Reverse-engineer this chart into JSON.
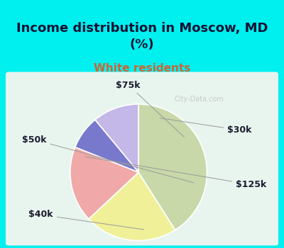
{
  "title": "Income distribution in Moscow, MD\n(%)",
  "subtitle": "White residents",
  "labels": [
    "$30k",
    "$75k",
    "$50k",
    "$40k",
    "$125k"
  ],
  "sizes": [
    11,
    8,
    18,
    22,
    41
  ],
  "colors": [
    "#c4b8e8",
    "#7878cc",
    "#f0a8a8",
    "#f0f098",
    "#c8d8a8"
  ],
  "startangle": 90,
  "background_color": "#00efef",
  "chart_bg_color": "#e8f5ee",
  "title_fontsize": 13,
  "subtitle_fontsize": 11,
  "subtitle_color": "#cc6633",
  "label_fontsize": 9,
  "label_color": "#1a1a2e",
  "watermark": "City-Data.com"
}
